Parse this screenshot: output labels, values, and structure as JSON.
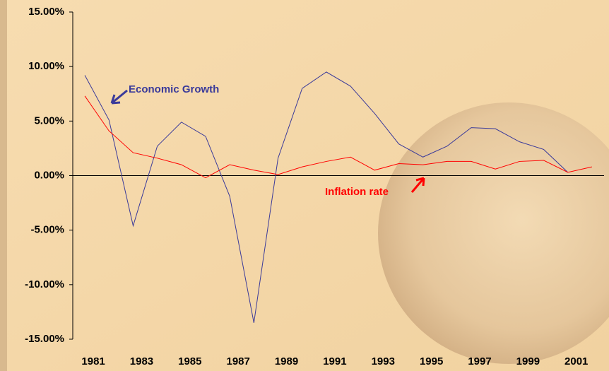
{
  "chart_data": {
    "type": "line",
    "categories": [
      "1981",
      null,
      "1983",
      null,
      "1985",
      null,
      "1987",
      null,
      "1989",
      null,
      "1991",
      null,
      "1993",
      null,
      "1995",
      null,
      "1997",
      null,
      "1999",
      null,
      "2001",
      null
    ],
    "series": [
      {
        "name": "Economic Growth",
        "color": "#3a3a9a",
        "values": [
          9.2,
          5.1,
          -4.6,
          2.7,
          4.9,
          3.6,
          -1.9,
          -13.5,
          1.6,
          8.0,
          9.5,
          8.2,
          5.7,
          2.9,
          1.7,
          2.7,
          4.4,
          4.3,
          3.1,
          2.4,
          0.3,
          null
        ]
      },
      {
        "name": "Inflation rate",
        "color": "#ff0000",
        "values": [
          7.3,
          4.1,
          2.1,
          1.6,
          1.0,
          -0.2,
          1.0,
          0.5,
          0.1,
          0.8,
          1.3,
          1.7,
          0.5,
          1.1,
          1.0,
          1.3,
          1.3,
          0.6,
          1.3,
          1.4,
          0.3,
          0.8
        ]
      }
    ],
    "ylim": [
      -15,
      15
    ],
    "yticks": [
      {
        "value": -15,
        "label": "-15.00%"
      },
      {
        "value": -10,
        "label": "-10.00%"
      },
      {
        "value": -5,
        "label": "-5.00%"
      },
      {
        "value": 0,
        "label": "0.00%"
      },
      {
        "value": 5,
        "label": "5.00%"
      },
      {
        "value": 10,
        "label": "10.00%"
      },
      {
        "value": 15,
        "label": "15.00%"
      }
    ]
  }
}
